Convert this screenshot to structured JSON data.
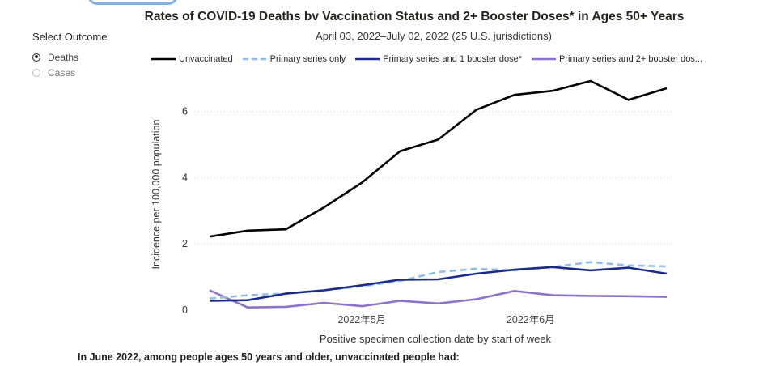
{
  "outcome": {
    "label": "Select Outcome",
    "options": [
      {
        "label": "Deaths",
        "selected": true
      },
      {
        "label": "Cases",
        "selected": false
      }
    ]
  },
  "footer": {
    "text": "In June 2022, among people ages 50 years and older, unvaccinated people had:"
  },
  "chart_data": {
    "type": "line",
    "title": "Rates of COVID-19 Deaths bv Vaccination Status and 2+ Booster Doses* in Ages 50+ Years",
    "subtitle": "April 03, 2022–July 02, 2022 (25 U.S. jurisdictions)",
    "xlabel": "Positive specimen collection date by start of week",
    "ylabel": "Incidence per 100,000 population",
    "x": [
      "2022-04-03",
      "2022-04-10",
      "2022-04-17",
      "2022-04-24",
      "2022-05-01",
      "2022-05-08",
      "2022-05-15",
      "2022-05-22",
      "2022-05-29",
      "2022-06-05",
      "2022-06-12",
      "2022-06-19",
      "2022-06-26"
    ],
    "x_ticks": [
      {
        "date": "2022-05-01",
        "label": "2022年5月"
      },
      {
        "date": "2022-06-01",
        "label": "2022年6月"
      }
    ],
    "ylim": [
      0,
      7
    ],
    "y_ticks": [
      0,
      2,
      4,
      6
    ],
    "grid": "horizontal dotted",
    "legend_position": "top",
    "series": [
      {
        "name": "Unvaccinated",
        "color": "#000000",
        "style": "solid",
        "values": [
          2.22,
          2.4,
          2.44,
          3.1,
          3.85,
          4.8,
          5.15,
          6.05,
          6.5,
          6.62,
          6.92,
          6.35,
          6.7
        ]
      },
      {
        "name": "Primary series only",
        "color": "#8fbde8",
        "style": "dashed",
        "values": [
          0.35,
          0.45,
          0.5,
          0.6,
          0.72,
          0.88,
          1.15,
          1.25,
          1.2,
          1.3,
          1.45,
          1.35,
          1.32
        ]
      },
      {
        "name": "Primary series and 1 booster dose*",
        "color": "#1a2b8c",
        "style": "solid",
        "values": [
          0.28,
          0.3,
          0.5,
          0.6,
          0.75,
          0.92,
          0.93,
          1.1,
          1.22,
          1.3,
          1.2,
          1.28,
          1.1
        ]
      },
      {
        "name": "Primary series and 2+ booster dos...",
        "color": "#8c72c8",
        "style": "solid",
        "values": [
          0.6,
          0.08,
          0.1,
          0.22,
          0.12,
          0.28,
          0.2,
          0.33,
          0.58,
          0.45,
          0.43,
          0.42,
          0.4
        ]
      }
    ]
  }
}
